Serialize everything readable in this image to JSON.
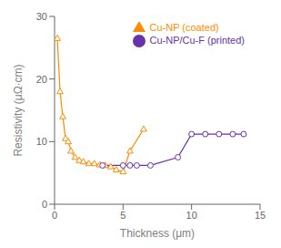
{
  "chart_data": {
    "type": "line",
    "xlabel": "Thickness (μm)",
    "ylabel": "Resistivity (μΩ·cm)",
    "series": [
      {
        "name": "Cu-NP (coated)",
        "color": "#FF8C00",
        "marker": "triangle",
        "x": [
          0.2,
          0.4,
          0.6,
          0.8,
          1.0,
          1.2,
          1.5,
          1.8,
          2.1,
          2.5,
          2.9,
          3.3,
          3.7,
          4.1,
          4.5,
          5.0,
          5.5,
          6.5
        ],
        "values": [
          26.5,
          18.0,
          14.0,
          10.5,
          10.0,
          8.5,
          7.5,
          7.0,
          6.8,
          6.5,
          6.5,
          6.3,
          6.2,
          6.0,
          5.5,
          5.2,
          8.5,
          12.0
        ]
      },
      {
        "name": "Cu-NP/Cu-F (printed)",
        "color": "#6633AA",
        "marker": "circle",
        "x": [
          3.5,
          5.0,
          5.5,
          6.0,
          7.0,
          9.0,
          10.0,
          11.0,
          12.0,
          13.0,
          13.8
        ],
        "values": [
          6.2,
          6.2,
          6.2,
          6.2,
          6.2,
          7.5,
          11.2,
          11.2,
          11.2,
          11.2,
          11.2
        ]
      }
    ],
    "xlim": [
      0,
      15
    ],
    "ylim": [
      0,
      30
    ],
    "xticks": [
      0,
      5,
      10,
      15
    ],
    "yticks": [
      0,
      10,
      20,
      30
    ],
    "grid": false,
    "legend": "upper right"
  }
}
